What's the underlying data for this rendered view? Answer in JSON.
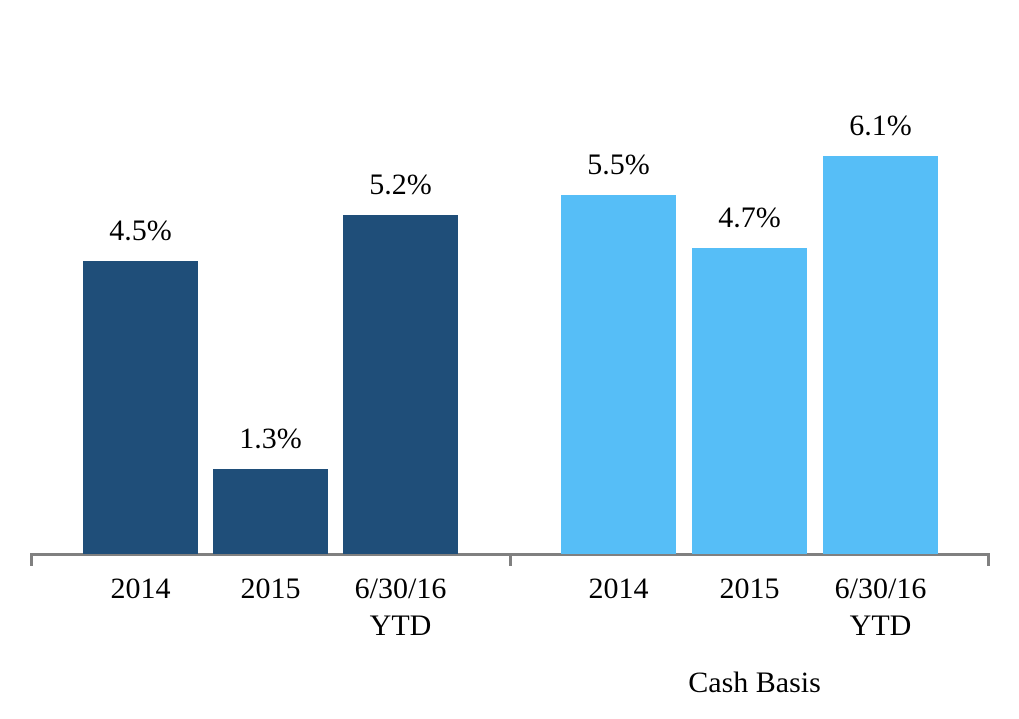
{
  "chart_data": {
    "type": "bar",
    "title": "",
    "categories": [
      "2014",
      "2015",
      "6/30/16\nYTD"
    ],
    "groups": [
      {
        "label": "",
        "color": "#1F4E79",
        "values": [
          4.5,
          1.3,
          5.2
        ],
        "value_labels": [
          "4.5%",
          "1.3%",
          "5.2%"
        ]
      },
      {
        "label": "Cash Basis",
        "color": "#56BEF7",
        "values": [
          5.5,
          4.7,
          6.1
        ],
        "value_labels": [
          "5.5%",
          "4.7%",
          "6.1%"
        ]
      }
    ],
    "ylim": [
      0,
      8.5
    ],
    "unit": "percent",
    "grid": false,
    "legend_position": "none",
    "axis_color": "#808080",
    "text_color": "#000000",
    "background_color": "#FFFFFF"
  }
}
